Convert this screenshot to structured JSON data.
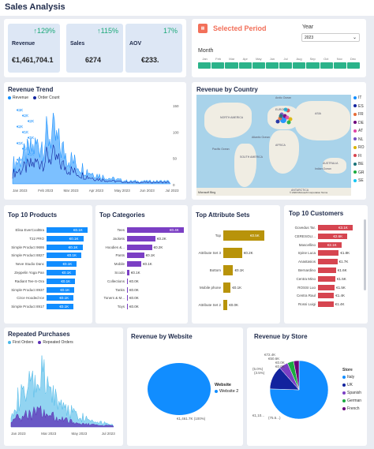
{
  "app": {
    "title": "Sales Analysis"
  },
  "kpis": [
    {
      "label": "Revenue",
      "change": "↑129%",
      "value": "€1,461,704.1"
    },
    {
      "label": "Sales",
      "change": "↑115%",
      "value": "6274"
    },
    {
      "label": "AOV",
      "change": "17%",
      "value": "€233."
    }
  ],
  "period": {
    "title": "Selected Period",
    "icon": "calendar-icon",
    "year_label": "Year",
    "year_value": "2023",
    "month_label": "Month",
    "months": [
      "Jan",
      "Feb",
      "Mar",
      "Apr",
      "May",
      "Jun",
      "Jul",
      "Aug",
      "Sep",
      "Oct",
      "Nov",
      "Dec"
    ]
  },
  "revenue_trend": {
    "title": "Revenue Trend",
    "legend": [
      "Revenue",
      "Order Count"
    ],
    "data_labels": [
      "€3K",
      "€2K",
      "€2K",
      "€2K",
      "€1K",
      "€1K",
      "€1K",
      "€1K",
      "€1K",
      "€0K"
    ],
    "right_ticks": [
      "150",
      "100",
      "50",
      "0"
    ],
    "x_ticks": [
      "Jan 2023",
      "Feb 2023",
      "Mar 2023",
      "Apr 2023",
      "May 2023",
      "Jun 2023",
      "Jul 2023"
    ]
  },
  "revenue_by_country": {
    "title": "Revenue by Country",
    "countries": [
      "IT",
      "ES",
      "FR",
      "DE",
      "AT",
      "NL",
      "RO",
      "FI",
      "BE",
      "GR",
      "SE"
    ],
    "country_colors": [
      "#118dff",
      "#12239e",
      "#e66c37",
      "#6b007b",
      "#e044a7",
      "#744ec2",
      "#d9b300",
      "#d64550",
      "#197278",
      "#1aab40",
      "#15c6f4"
    ],
    "map_labels": [
      "NORTH AMERICA",
      "EUROPE",
      "ASIA",
      "AFRICA",
      "SOUTH AMERICA",
      "Atlantic Ocean",
      "Pacific Ocean",
      "Indian Ocean",
      "Arctic Ocean",
      "AUSTRALIA",
      "ANTARCTICA"
    ],
    "footer_left": "Microsoft Bing",
    "footer_right": "© 2023 Microsoft Corporation Terms"
  },
  "top_products": {
    "title": "Top 10 Products",
    "rows": [
      {
        "label": "Elisa EverCoolBra",
        "value": "€0.1K",
        "frac": 1.0
      },
      {
        "label": "T22 PRO",
        "value": "€0.1K",
        "frac": 0.9
      },
      {
        "label": "Simple Product 9686",
        "value": "€0.1K",
        "frac": 0.88
      },
      {
        "label": "Simple Product 8827",
        "value": "€0.1K",
        "frac": 0.85
      },
      {
        "label": "Neve Studio Danc",
        "value": "€0.1K",
        "frac": 0.74
      },
      {
        "label": "Zeppelin Yoga Pan",
        "value": "€0.1K",
        "frac": 0.72
      },
      {
        "label": "Radiant Tee-S-Ora",
        "value": "€0.1K",
        "frac": 0.7
      },
      {
        "label": "Simple Product 8937",
        "value": "€0.1K",
        "frac": 0.68
      },
      {
        "label": "Circe Hooded Ice",
        "value": "€0.1K",
        "frac": 0.66
      },
      {
        "label": "Simple Product 8917",
        "value": "€0.1K",
        "frac": 0.66
      }
    ],
    "color": "#118dff"
  },
  "top_categories": {
    "title": "Top Categories",
    "rows": [
      {
        "label": "Tees",
        "value": "€0.4K",
        "frac": 1.0
      },
      {
        "label": "Jackets",
        "value": "€0.2K",
        "frac": 0.5
      },
      {
        "label": "Hoodies &...",
        "value": "€0.2K",
        "frac": 0.44
      },
      {
        "label": "Pants",
        "value": "€0.1K",
        "frac": 0.3
      },
      {
        "label": "Mobile",
        "value": "€0.1K",
        "frac": 0.25
      },
      {
        "label": "Scodo",
        "value": "€0.1K",
        "frac": 0.04
      },
      {
        "label": "Collections",
        "value": "€0.0K",
        "frac": 0.0
      },
      {
        "label": "Tanks",
        "value": "€0.0K",
        "frac": 0.0
      },
      {
        "label": "Toners & M...",
        "value": "€0.0K",
        "frac": 0.0
      },
      {
        "label": "Toys",
        "value": "€0.0K",
        "frac": 0.0
      }
    ],
    "color": "#7b3fc4"
  },
  "top_attribute_sets": {
    "title": "Top Attribute Sets",
    "rows": [
      {
        "label": "Top",
        "value": "€0.5K",
        "frac": 1.0
      },
      {
        "label": "Attribute Set 3",
        "value": "€0.2K",
        "frac": 0.46
      },
      {
        "label": "Bottom",
        "value": "€0.1K",
        "frac": 0.24
      },
      {
        "label": "Mobile phone",
        "value": "€0.1K",
        "frac": 0.18
      },
      {
        "label": "Attribute Set 2",
        "value": "€0.0K",
        "frac": 0.1
      }
    ],
    "color": "#b8930a"
  },
  "top_customers": {
    "title": "Top 10 Customers",
    "rows": [
      {
        "label": "Govedus Tar.",
        "value": "€3.1K",
        "frac": 1.0
      },
      {
        "label": "CERESOLI...",
        "value": "€2.6K",
        "frac": 0.85
      },
      {
        "label": "Mascellino",
        "value": "€2.1K",
        "frac": 0.68
      },
      {
        "label": "Irpine Luca",
        "value": "€1.8K",
        "frac": 0.6
      },
      {
        "label": "Anastasios",
        "value": "€1.7K",
        "frac": 0.56
      },
      {
        "label": "Bernardino",
        "value": "€1.6K",
        "frac": 0.52
      },
      {
        "label": "Centra Mino",
        "value": "€1.5K",
        "frac": 0.5
      },
      {
        "label": "ROSSI Luo",
        "value": "€1.5K",
        "frac": 0.48
      },
      {
        "label": "Centra Raul",
        "value": "€1.4K",
        "frac": 0.46
      },
      {
        "label": "Rossi Luigi",
        "value": "€1.4K",
        "frac": 0.45
      }
    ],
    "color": "#d64550"
  },
  "repeated_purchases": {
    "title": "Repeated Purchases",
    "legend": [
      "First Orders",
      "Repeated Orders"
    ],
    "x_ticks": [
      "Jan 2023",
      "Mar 2023",
      "May 2023",
      "Jul 2023"
    ]
  },
  "revenue_by_website": {
    "title": "Revenue by Website",
    "legend_title": "Website",
    "legend_item": "Website 2",
    "slice_label": "€1,461.7K (100%)"
  },
  "revenue_by_store": {
    "title": "Revenue by Store",
    "legend_title": "Store",
    "stores": [
      "Italy",
      "UK",
      "Spanish",
      "German",
      "French"
    ],
    "store_colors": [
      "#118dff",
      "#12239e",
      "#7b3fc4",
      "#1aab40",
      "#6b007b"
    ],
    "labels": [
      "€72.4K",
      "€50.6K",
      "(5.0%)",
      "(3.5%)",
      "€0.0K",
      "€0.0K",
      "€1,10...",
      "(75.5...)"
    ]
  },
  "chart_data": [
    {
      "type": "bar",
      "title": "Top 10 Products",
      "categories": [
        "Elisa EverCoolBra",
        "T22 PRO",
        "Simple Product 9686",
        "Simple Product 8827",
        "Neve Studio Danc",
        "Zeppelin Yoga Pan",
        "Radiant Tee-S-Ora",
        "Simple Product 8937",
        "Circe Hooded Ice",
        "Simple Product 8917"
      ],
      "values": [
        0.1,
        0.1,
        0.1,
        0.1,
        0.1,
        0.1,
        0.1,
        0.1,
        0.1,
        0.1
      ]
    },
    {
      "type": "bar",
      "title": "Top Categories",
      "categories": [
        "Tees",
        "Jackets",
        "Hoodies &...",
        "Pants",
        "Mobile",
        "Scodo",
        "Collections",
        "Tanks",
        "Toners & M...",
        "Toys"
      ],
      "values": [
        0.4,
        0.2,
        0.2,
        0.1,
        0.1,
        0.1,
        0.0,
        0.0,
        0.0,
        0.0
      ]
    },
    {
      "type": "bar",
      "title": "Top Attribute Sets",
      "categories": [
        "Top",
        "Attribute Set 3",
        "Bottom",
        "Mobile phone",
        "Attribute Set 2"
      ],
      "values": [
        0.5,
        0.2,
        0.1,
        0.1,
        0.0
      ]
    },
    {
      "type": "bar",
      "title": "Top 10 Customers",
      "categories": [
        "Govedus Tar.",
        "CERESOLI...",
        "Mascellino",
        "Irpine Luca",
        "Anastasios",
        "Bernardino",
        "Centra Mino",
        "ROSSI Luo",
        "Centra Raul",
        "Rossi Luigi"
      ],
      "values": [
        3.1,
        2.6,
        2.1,
        1.8,
        1.7,
        1.6,
        1.5,
        1.5,
        1.4,
        1.4
      ]
    },
    {
      "type": "pie",
      "title": "Revenue by Website",
      "categories": [
        "Website 2"
      ],
      "values": [
        1461.7
      ]
    }
  ]
}
